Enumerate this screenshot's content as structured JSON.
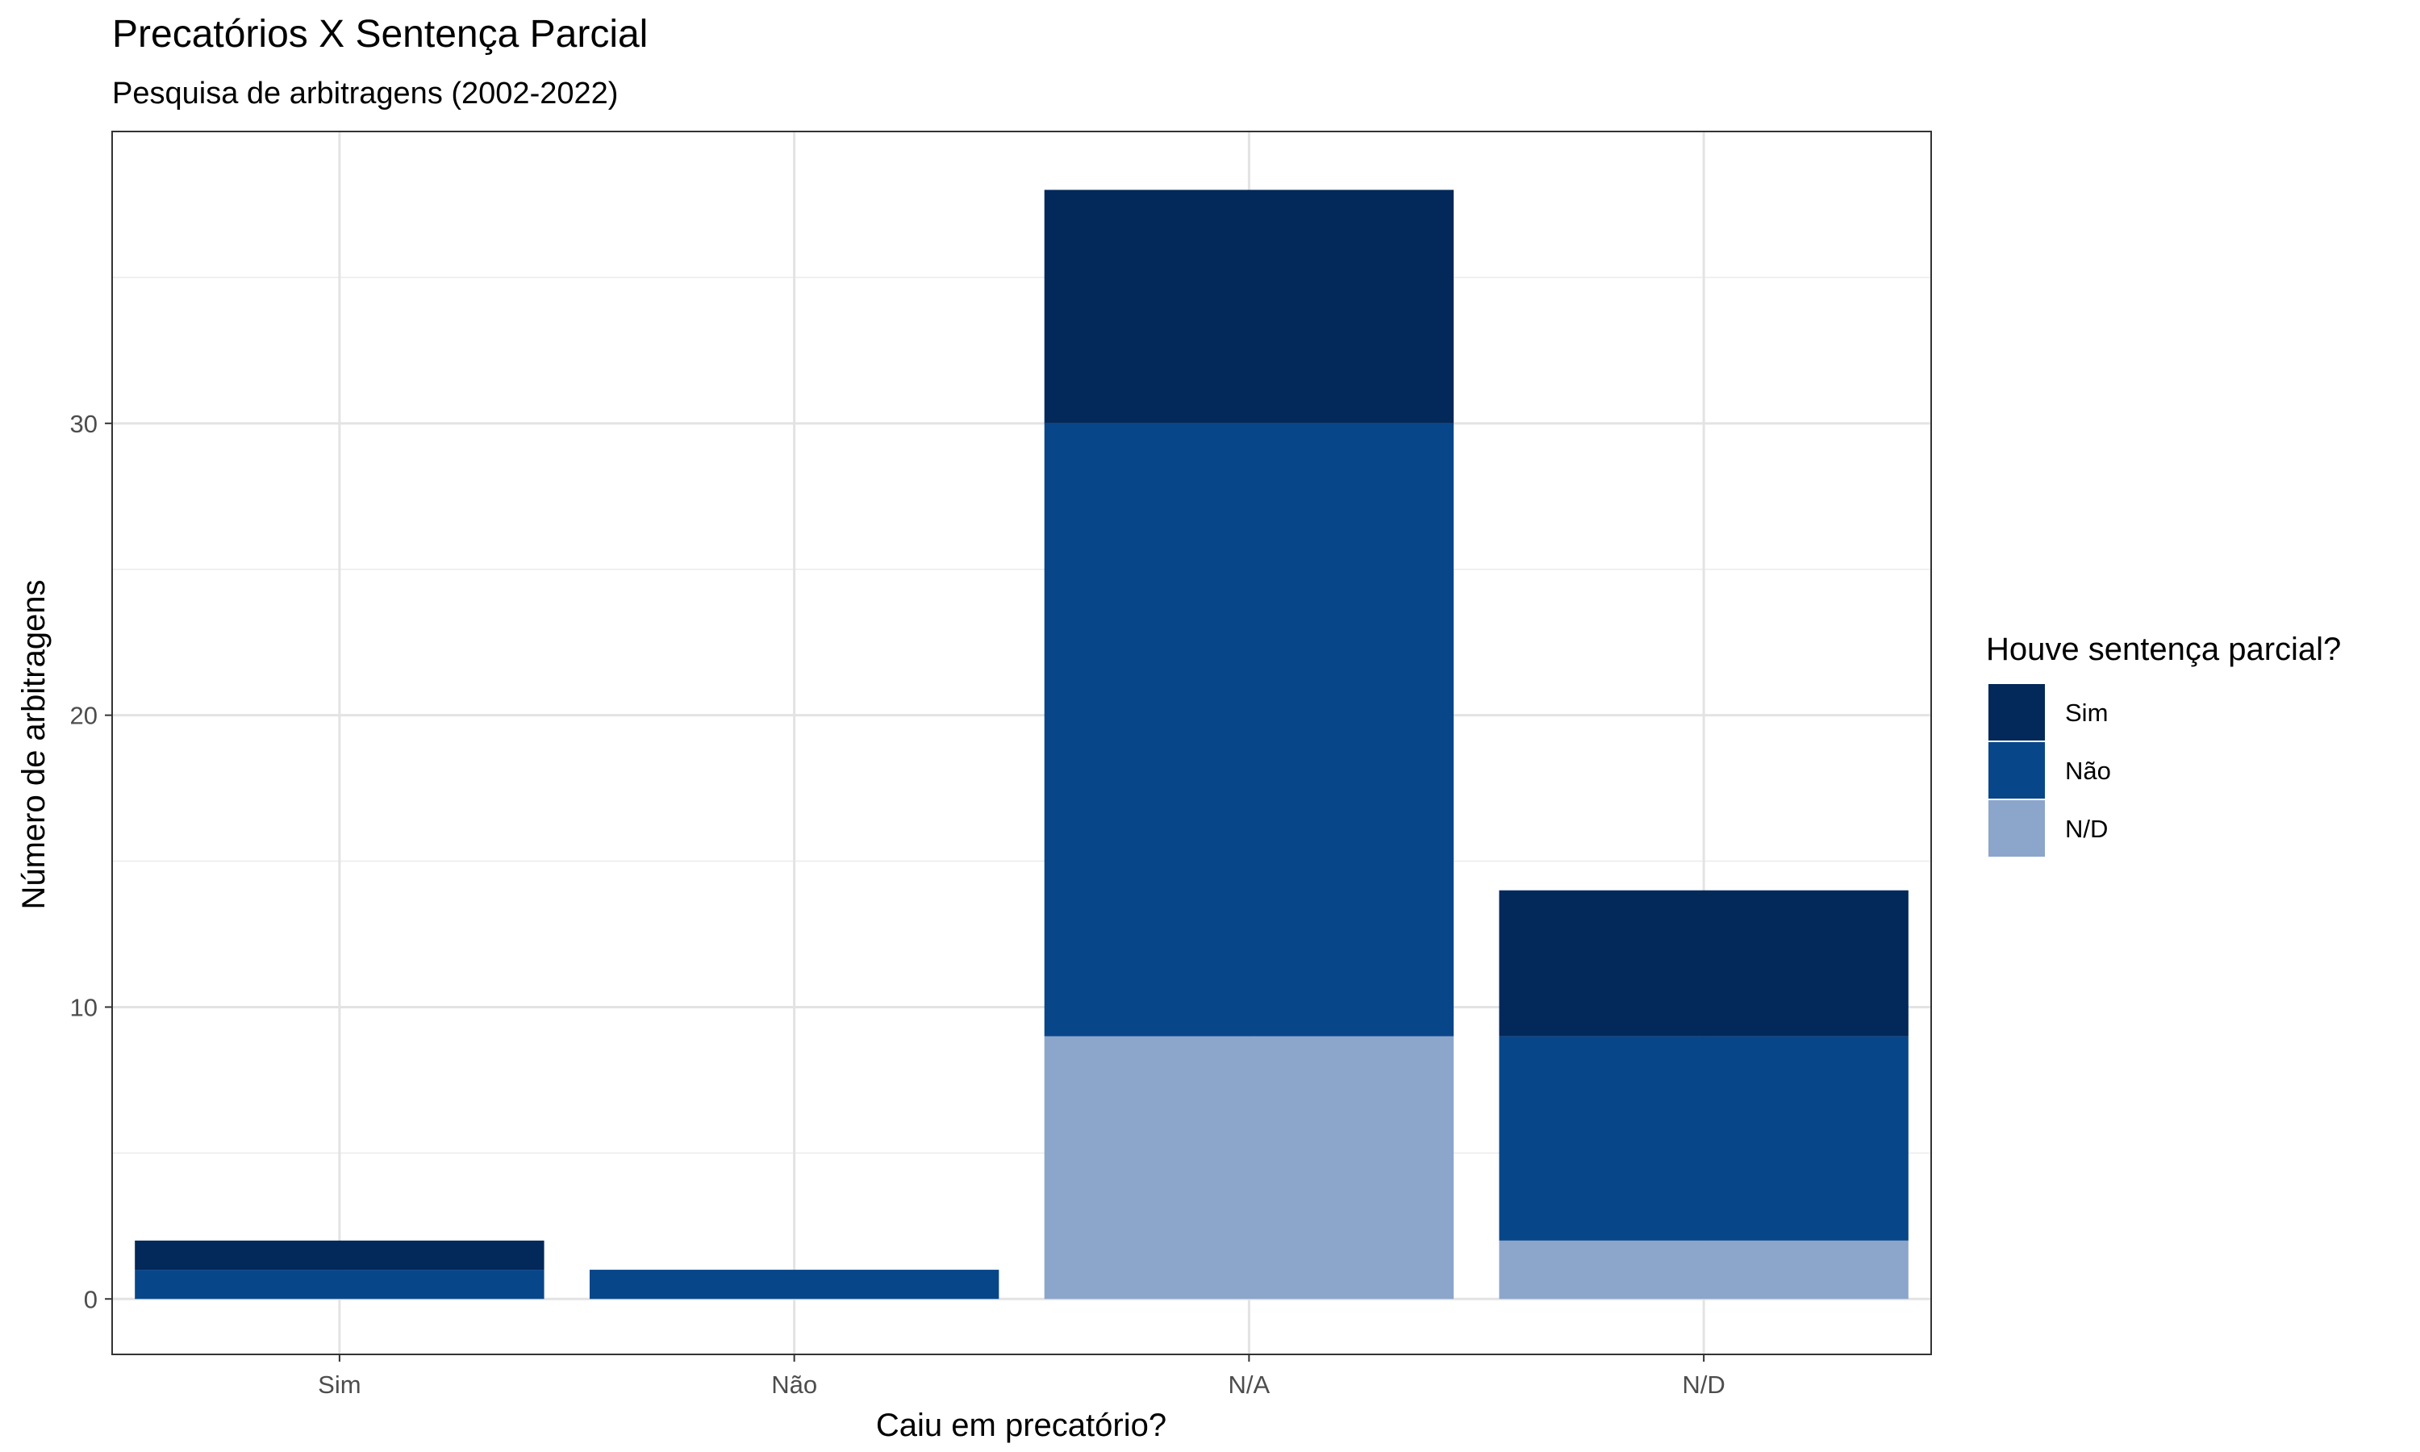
{
  "chart_data": {
    "type": "bar",
    "stacked": true,
    "title": "Precatórios X Sentença Parcial",
    "subtitle": "Pesquisa de arbitragens (2002-2022)",
    "xlabel": "Caiu em precatório?",
    "ylabel": "Número de arbitragens",
    "categories": [
      "Sim",
      "Não",
      "N/A",
      "N/D"
    ],
    "ylim": [
      -1.9,
      40
    ],
    "yticks": [
      0,
      10,
      20,
      30
    ],
    "grid": true,
    "legend": {
      "title": "Houve sentença parcial?",
      "placement": "right",
      "entries": [
        "Sim",
        "Não",
        "N/D"
      ]
    },
    "series": [
      {
        "name": "N/D",
        "color": "#8ca5cb",
        "values": [
          0,
          0,
          9,
          2
        ]
      },
      {
        "name": "Não",
        "color": "#08468a",
        "values": [
          1,
          1,
          21,
          7
        ]
      },
      {
        "name": "Sim",
        "color": "#03285a",
        "values": [
          1,
          0,
          8,
          5
        ]
      }
    ]
  }
}
